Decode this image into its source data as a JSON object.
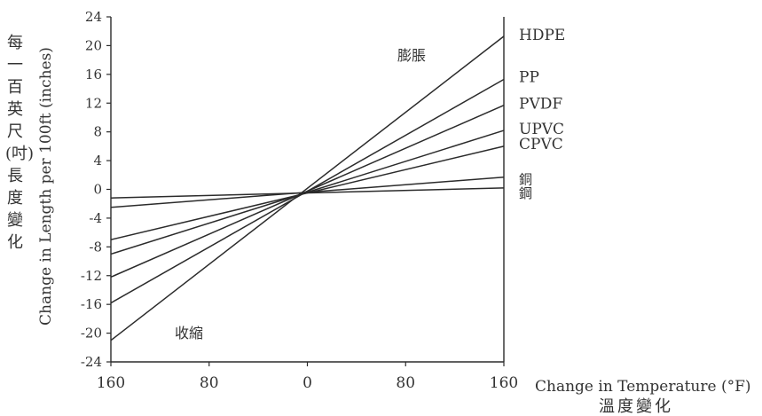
{
  "chart_data": {
    "type": "line",
    "title": "",
    "xlabel": "Change in Temperature (°F)",
    "xlabel_cjk": "溫度變化",
    "ylabel": "Change in Length per 100ft (inches)",
    "ylabel_cjk": "每一百英尺(吋)長度變化",
    "x_ticks": [
      "160",
      "80",
      "0",
      "80",
      "160"
    ],
    "y_ticks": [
      24,
      20,
      16,
      12,
      8,
      4,
      0,
      -4,
      -8,
      -12,
      -16,
      -20,
      -24
    ],
    "ylim": [
      -24,
      24
    ],
    "grid": false,
    "legend": "right-end line labels",
    "line_color": "#2b2b2b",
    "series": [
      {
        "name": "HDPE",
        "x": [
          -160,
          160
        ],
        "y": [
          -21.0,
          21.3
        ]
      },
      {
        "name": "PP",
        "x": [
          -160,
          160
        ],
        "y": [
          -15.8,
          15.3
        ]
      },
      {
        "name": "PVDF",
        "x": [
          -160,
          160
        ],
        "y": [
          -12.2,
          11.7
        ]
      },
      {
        "name": "UPVC",
        "x": [
          -160,
          160
        ],
        "y": [
          -9.0,
          8.2
        ]
      },
      {
        "name": "CPVC",
        "x": [
          -160,
          160
        ],
        "y": [
          -7.0,
          6.0
        ]
      },
      {
        "name": "銅",
        "x": [
          -160,
          160
        ],
        "y": [
          -2.5,
          1.7
        ]
      },
      {
        "name": "鋼",
        "x": [
          -160,
          160
        ],
        "y": [
          -1.2,
          0.2
        ]
      }
    ],
    "annotations": {
      "expansion": "膨脹",
      "contraction": "收縮"
    }
  }
}
